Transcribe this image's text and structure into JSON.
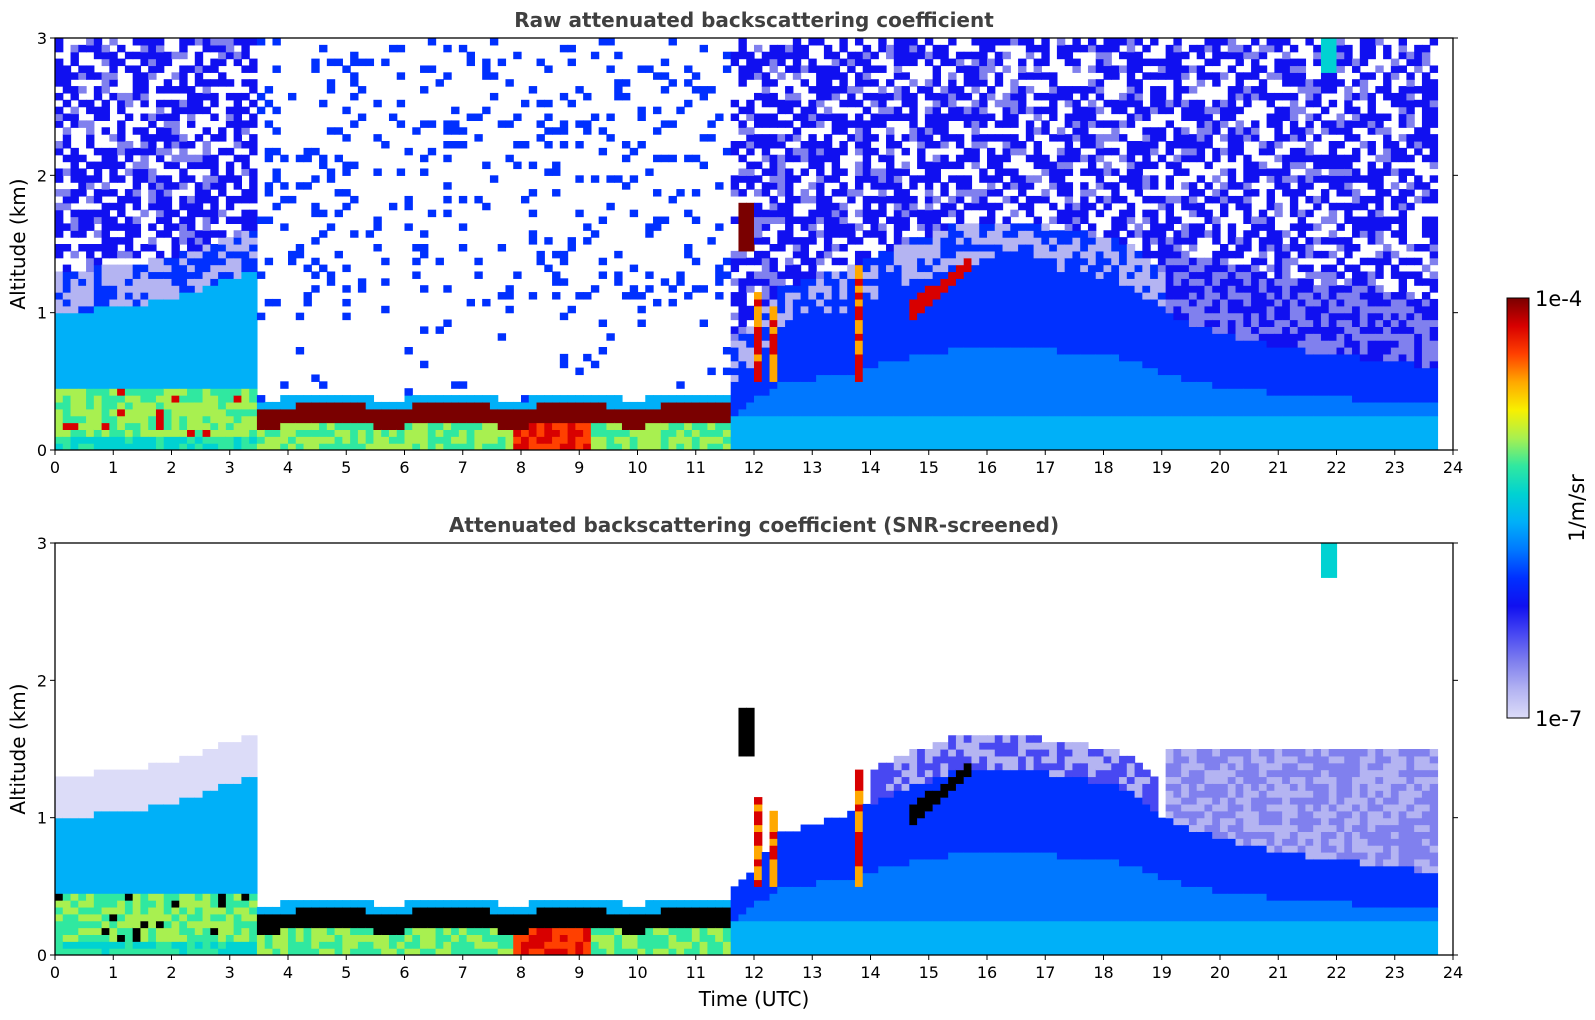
{
  "colors": {
    "palette": [
      "#ffffff",
      "#dcdcf8",
      "#b4b4f2",
      "#8080ee",
      "#4848f2",
      "#1010f0",
      "#0030ff",
      "#0078ff",
      "#00b0f8",
      "#00d2d2",
      "#30e8a0",
      "#a8f050",
      "#f8f000",
      "#ffa800",
      "#ff4000",
      "#d80000",
      "#7a0000",
      "#000000"
    ],
    "axis": "#000000",
    "title": "#404040"
  },
  "chart_data": [
    {
      "type": "heatmap",
      "title": "Raw attenuated backscattering coefficient",
      "xlabel": "",
      "ylabel": "Altitude (km)",
      "x_ticks": [
        "0",
        "1",
        "2",
        "3",
        "4",
        "5",
        "6",
        "7",
        "8",
        "9",
        "10",
        "11",
        "12",
        "13",
        "14",
        "15",
        "16",
        "17",
        "18",
        "19",
        "20",
        "21",
        "22",
        "23",
        "24"
      ],
      "y_ticks": [
        "0",
        "1",
        "2",
        "3"
      ],
      "xlim": [
        0,
        24
      ],
      "ylim": [
        0,
        3
      ],
      "x_units": "hours UTC",
      "data_end_hour": 23.7,
      "features": [
        {
          "name": "boundary layer aerosol",
          "time": [
            0,
            3.4
          ],
          "altitude": [
            0,
            1.05
          ],
          "level": "1e-6"
        },
        {
          "name": "low cloud layer",
          "time": [
            3.4,
            11.6
          ],
          "altitude": [
            0.18,
            0.36
          ],
          "level": "1e-4"
        },
        {
          "name": "convective cloud",
          "time": [
            11.7,
            13.8
          ],
          "altitude": [
            0.5,
            1.8
          ],
          "level": "5e-5"
        },
        {
          "name": "elevated cloud",
          "time": [
            14.7,
            15.7
          ],
          "altitude": [
            1.0,
            1.35
          ],
          "level": "1e-4"
        },
        {
          "name": "cirrus fragment",
          "time": [
            21.7,
            22.0
          ],
          "altitude": [
            2.7,
            3.0
          ],
          "level": "5e-6"
        }
      ]
    },
    {
      "type": "heatmap",
      "title": "Attenuated backscattering coefficient (SNR-screened)",
      "xlabel": "Time (UTC)",
      "ylabel": "Altitude (km)",
      "x_ticks": [
        "0",
        "1",
        "2",
        "3",
        "4",
        "5",
        "6",
        "7",
        "8",
        "9",
        "10",
        "11",
        "12",
        "13",
        "14",
        "15",
        "16",
        "17",
        "18",
        "19",
        "20",
        "21",
        "22",
        "23",
        "24"
      ],
      "y_ticks": [
        "0",
        "1",
        "2",
        "3"
      ],
      "xlim": [
        0,
        24
      ],
      "ylim": [
        0,
        3
      ],
      "x_units": "hours UTC",
      "data_end_hour": 23.7,
      "features": [
        {
          "name": "boundary layer aerosol",
          "time": [
            0,
            3.7
          ],
          "altitude": [
            0,
            1.3
          ],
          "level": "1e-6"
        },
        {
          "name": "low cloud layer",
          "time": [
            3.6,
            11.6
          ],
          "altitude": [
            0.18,
            0.36
          ],
          "level": "above 1e-4"
        },
        {
          "name": "convective cloud",
          "time": [
            11.7,
            13.8
          ],
          "altitude": [
            0.5,
            1.8
          ],
          "level": "5e-5"
        },
        {
          "name": "elevated cloud",
          "time": [
            14.7,
            15.7
          ],
          "altitude": [
            1.0,
            1.35
          ],
          "level": "above 1e-4"
        },
        {
          "name": "cirrus fragment",
          "time": [
            21.7,
            22.0
          ],
          "altitude": [
            2.7,
            3.0
          ],
          "level": "5e-6"
        }
      ]
    }
  ],
  "colorbar": {
    "top_label": "1e-4",
    "bottom_label": "1e-7",
    "unit_label": "1/m/sr",
    "scale": "log",
    "range": [
      1e-07,
      0.0001
    ]
  }
}
